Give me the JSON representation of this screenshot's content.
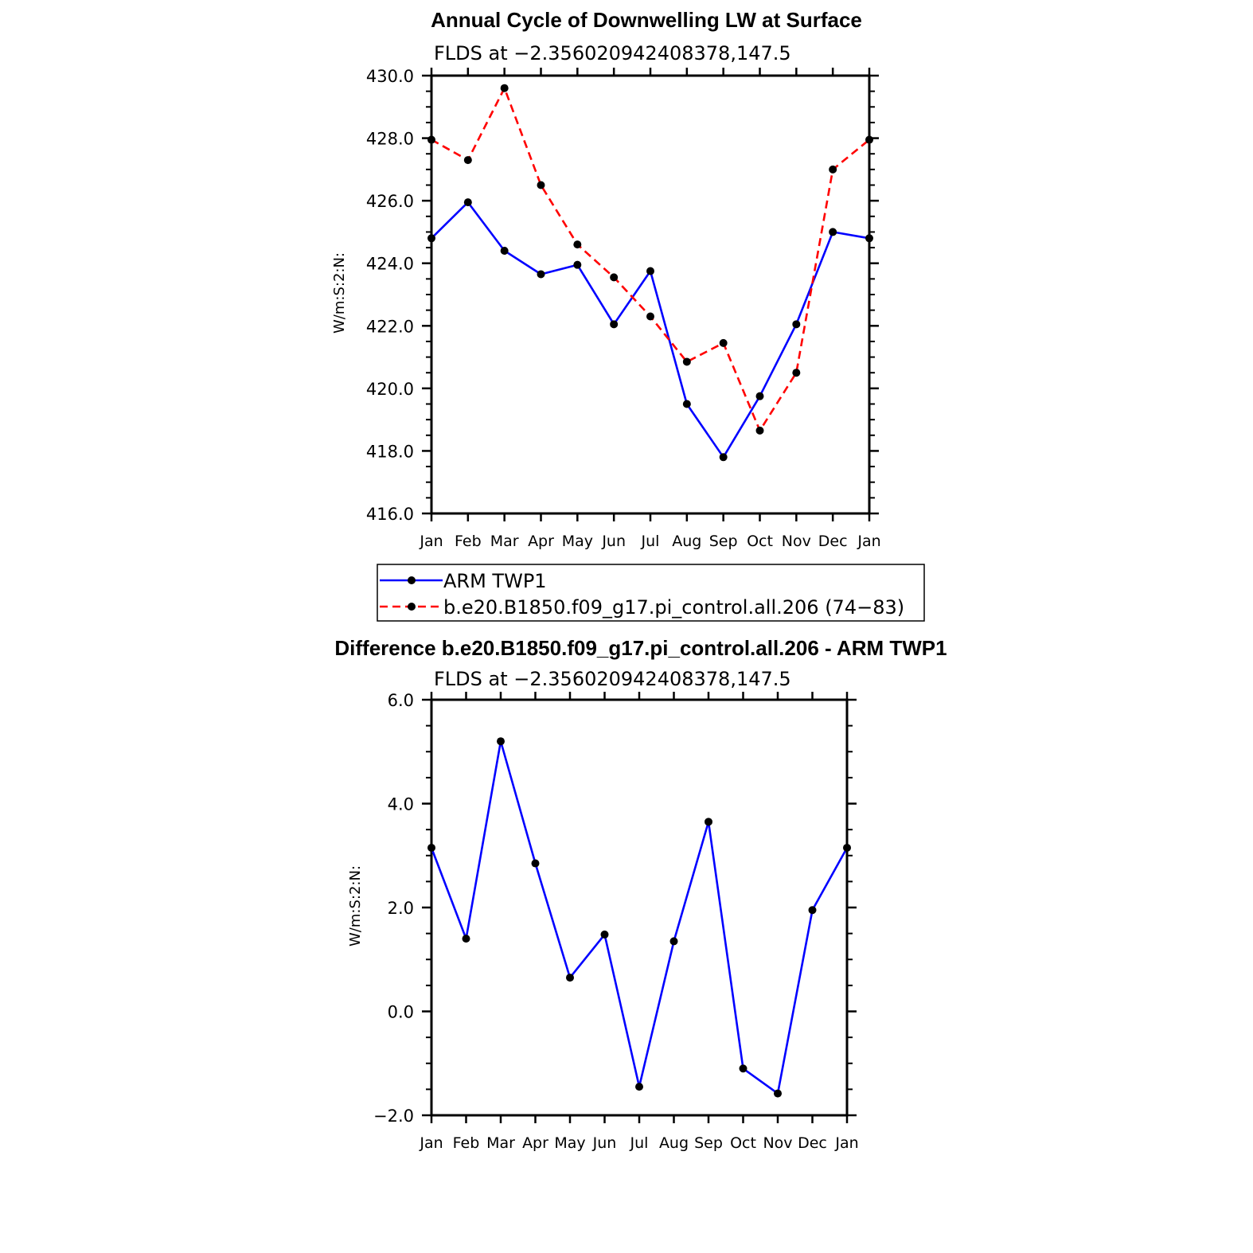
{
  "colors": {
    "series_obs": "#0000ff",
    "series_model": "#ff0000",
    "marker": "#000000",
    "axis": "#000000"
  },
  "legend": {
    "placement": "below top chart",
    "entries": [
      {
        "label": "ARM TWP1",
        "color": "#0000ff",
        "style": "solid"
      },
      {
        "label": "b.e20.B1850.f09_g17.pi_control.all.206 (74−83)",
        "color": "#ff0000",
        "style": "dashed"
      }
    ]
  },
  "chart_data": [
    {
      "type": "line",
      "title": "Annual Cycle of Downwelling LW at Surface",
      "subtitle": "FLDS at −2.356020942408378,147.5",
      "ylabel": "W/m:S:2:N:",
      "xlabel": "",
      "categories": [
        "Jan",
        "Feb",
        "Mar",
        "Apr",
        "May",
        "Jun",
        "Jul",
        "Aug",
        "Sep",
        "Oct",
        "Nov",
        "Dec",
        "Jan"
      ],
      "ylim": [
        416.0,
        430.0
      ],
      "yticks": [
        "416.0",
        "418.0",
        "420.0",
        "422.0",
        "424.0",
        "426.0",
        "428.0",
        "430.0"
      ],
      "grid": false,
      "series": [
        {
          "name": "ARM TWP1",
          "color": "#0000ff",
          "style": "solid",
          "values": [
            424.8,
            425.95,
            424.4,
            423.65,
            423.95,
            422.05,
            423.75,
            419.5,
            417.8,
            419.75,
            422.05,
            425.0,
            424.8
          ]
        },
        {
          "name": "b.e20.B1850.f09_g17.pi_control.all.206 (74−83)",
          "color": "#ff0000",
          "style": "dashed",
          "values": [
            427.95,
            427.3,
            429.6,
            426.5,
            424.6,
            423.55,
            422.3,
            420.85,
            421.45,
            418.65,
            420.5,
            427.0,
            427.95
          ]
        }
      ]
    },
    {
      "type": "line",
      "title": "Difference b.e20.B1850.f09_g17.pi_control.all.206 - ARM TWP1",
      "subtitle": "FLDS at −2.356020942408378,147.5",
      "ylabel": "W/m:S:2:N:",
      "xlabel": "",
      "categories": [
        "Jan",
        "Feb",
        "Mar",
        "Apr",
        "May",
        "Jun",
        "Jul",
        "Aug",
        "Sep",
        "Oct",
        "Nov",
        "Dec",
        "Jan"
      ],
      "ylim": [
        -2.0,
        6.0
      ],
      "yticks": [
        "−2.0",
        "0.0",
        "2.0",
        "4.0",
        "6.0"
      ],
      "grid": false,
      "series": [
        {
          "color": "#0000ff",
          "style": "solid",
          "values": [
            3.15,
            1.4,
            5.2,
            2.85,
            0.65,
            1.48,
            -1.45,
            1.35,
            3.65,
            -1.1,
            -1.58,
            1.95,
            3.15
          ]
        }
      ]
    }
  ]
}
